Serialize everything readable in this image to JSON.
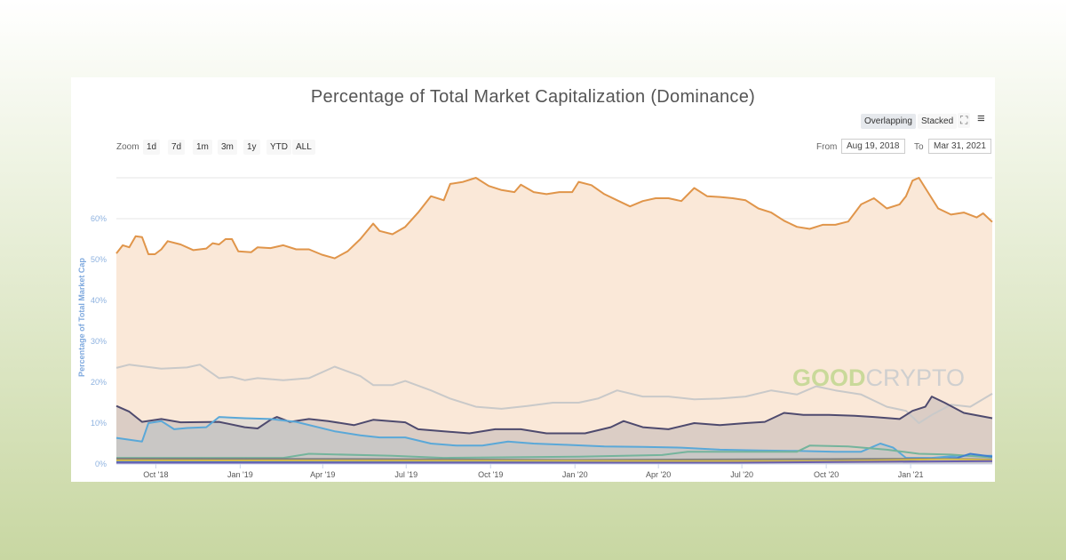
{
  "chart_data": {
    "type": "area",
    "title": "Percentage of Total Market Capitalization (Dominance)",
    "ylabel": "Percentage of Total Market Cap",
    "xlabel": "",
    "ylim": [
      0,
      70
    ],
    "yticks": [
      "0%",
      "10%",
      "20%",
      "30%",
      "40%",
      "50%",
      "60%"
    ],
    "xticks": [
      "Oct '18",
      "Jan '19",
      "Apr '19",
      "Jul '19",
      "Oct '19",
      "Jan '20",
      "Apr '20",
      "Jul '20",
      "Oct '20",
      "Jan '21"
    ],
    "xtick_dates": [
      "2018-10-01",
      "2019-01-01",
      "2019-04-01",
      "2019-07-01",
      "2019-10-01",
      "2020-01-01",
      "2020-04-01",
      "2020-07-01",
      "2020-10-01",
      "2021-01-01"
    ],
    "xrange": [
      "2018-08-19",
      "2021-03-31"
    ],
    "grid": true,
    "series": [
      {
        "color": "#e0954a",
        "fill": "#fae8d8",
        "points": [
          [
            "2018-08-19",
            51.5
          ],
          [
            "2018-08-26",
            53.5
          ],
          [
            "2018-09-02",
            53
          ],
          [
            "2018-09-09",
            55.7
          ],
          [
            "2018-09-16",
            55.5
          ],
          [
            "2018-09-23",
            51.3
          ],
          [
            "2018-09-30",
            51.3
          ],
          [
            "2018-10-07",
            52.5
          ],
          [
            "2018-10-14",
            54.5
          ],
          [
            "2018-10-28",
            53.7
          ],
          [
            "2018-11-11",
            52.3
          ],
          [
            "2018-11-25",
            52.7
          ],
          [
            "2018-12-02",
            54
          ],
          [
            "2018-12-09",
            53.7
          ],
          [
            "2018-12-16",
            55
          ],
          [
            "2018-12-23",
            55
          ],
          [
            "2018-12-30",
            52
          ],
          [
            "2019-01-13",
            51.8
          ],
          [
            "2019-01-20",
            53
          ],
          [
            "2019-02-03",
            52.8
          ],
          [
            "2019-02-17",
            53.5
          ],
          [
            "2019-03-03",
            52.5
          ],
          [
            "2019-03-17",
            52.5
          ],
          [
            "2019-03-31",
            51.2
          ],
          [
            "2019-04-14",
            50.3
          ],
          [
            "2019-04-28",
            52
          ],
          [
            "2019-05-12",
            55
          ],
          [
            "2019-05-26",
            58.8
          ],
          [
            "2019-06-02",
            57
          ],
          [
            "2019-06-16",
            56.2
          ],
          [
            "2019-06-30",
            58
          ],
          [
            "2019-07-14",
            61.5
          ],
          [
            "2019-07-28",
            65.5
          ],
          [
            "2019-08-11",
            64.5
          ],
          [
            "2019-08-18",
            68.5
          ],
          [
            "2019-09-01",
            69
          ],
          [
            "2019-09-15",
            70
          ],
          [
            "2019-09-29",
            68
          ],
          [
            "2019-10-13",
            67
          ],
          [
            "2019-10-27",
            66.5
          ],
          [
            "2019-11-03",
            68.3
          ],
          [
            "2019-11-17",
            66.5
          ],
          [
            "2019-12-01",
            66
          ],
          [
            "2019-12-15",
            66.5
          ],
          [
            "2019-12-29",
            66.5
          ],
          [
            "2020-01-05",
            69
          ],
          [
            "2020-01-19",
            68.2
          ],
          [
            "2020-02-02",
            66
          ],
          [
            "2020-02-16",
            64.5
          ],
          [
            "2020-03-01",
            63
          ],
          [
            "2020-03-15",
            64.3
          ],
          [
            "2020-03-29",
            65
          ],
          [
            "2020-04-12",
            65
          ],
          [
            "2020-04-26",
            64.3
          ],
          [
            "2020-05-10",
            67.5
          ],
          [
            "2020-05-24",
            65.5
          ],
          [
            "2020-06-07",
            65.3
          ],
          [
            "2020-06-21",
            65
          ],
          [
            "2020-07-05",
            64.5
          ],
          [
            "2020-07-19",
            62.5
          ],
          [
            "2020-08-02",
            61.5
          ],
          [
            "2020-08-16",
            59.5
          ],
          [
            "2020-08-30",
            58
          ],
          [
            "2020-09-13",
            57.5
          ],
          [
            "2020-09-27",
            58.5
          ],
          [
            "2020-10-11",
            58.5
          ],
          [
            "2020-10-25",
            59.3
          ],
          [
            "2020-11-08",
            63.5
          ],
          [
            "2020-11-22",
            65
          ],
          [
            "2020-12-06",
            62.5
          ],
          [
            "2020-12-20",
            63.5
          ],
          [
            "2020-12-27",
            65.5
          ],
          [
            "2021-01-03",
            69.3
          ],
          [
            "2021-01-10",
            70
          ],
          [
            "2021-01-17",
            67.5
          ],
          [
            "2021-01-31",
            62.5
          ],
          [
            "2021-02-14",
            61
          ],
          [
            "2021-02-28",
            61.5
          ],
          [
            "2021-03-14",
            60.3
          ],
          [
            "2021-03-21",
            61.3
          ],
          [
            "2021-03-31",
            59.2
          ]
        ]
      },
      {
        "color": "#c9c9c9",
        "fill": "none",
        "points": [
          [
            "2018-08-19",
            23.5
          ],
          [
            "2018-09-02",
            24.3
          ],
          [
            "2018-10-07",
            23.3
          ],
          [
            "2018-11-04",
            23.6
          ],
          [
            "2018-11-18",
            24.3
          ],
          [
            "2018-12-09",
            21
          ],
          [
            "2018-12-23",
            21.3
          ],
          [
            "2019-01-06",
            20.5
          ],
          [
            "2019-01-20",
            21
          ],
          [
            "2019-02-17",
            20.5
          ],
          [
            "2019-03-17",
            21
          ],
          [
            "2019-04-14",
            23.8
          ],
          [
            "2019-05-12",
            21.5
          ],
          [
            "2019-05-26",
            19.3
          ],
          [
            "2019-06-16",
            19.3
          ],
          [
            "2019-06-30",
            20.3
          ],
          [
            "2019-07-28",
            18
          ],
          [
            "2019-08-18",
            16
          ],
          [
            "2019-09-15",
            14
          ],
          [
            "2019-10-13",
            13.5
          ],
          [
            "2019-11-10",
            14.2
          ],
          [
            "2019-12-08",
            15
          ],
          [
            "2020-01-05",
            15
          ],
          [
            "2020-01-26",
            16
          ],
          [
            "2020-02-16",
            18
          ],
          [
            "2020-03-15",
            16.5
          ],
          [
            "2020-04-12",
            16.5
          ],
          [
            "2020-05-10",
            15.8
          ],
          [
            "2020-06-07",
            16
          ],
          [
            "2020-07-05",
            16.5
          ],
          [
            "2020-08-02",
            18
          ],
          [
            "2020-08-30",
            17
          ],
          [
            "2020-09-20",
            19
          ],
          [
            "2020-10-11",
            18
          ],
          [
            "2020-11-08",
            17
          ],
          [
            "2020-12-06",
            14
          ],
          [
            "2020-12-27",
            13
          ],
          [
            "2021-01-10",
            10
          ],
          [
            "2021-01-24",
            12
          ],
          [
            "2021-02-14",
            14.5
          ],
          [
            "2021-03-07",
            14
          ],
          [
            "2021-03-31",
            17.2
          ]
        ]
      },
      {
        "color": "#4e4a6e",
        "fill": "rgba(110,110,130,0.22)",
        "points": [
          [
            "2018-08-19",
            14.2
          ],
          [
            "2018-09-02",
            12.8
          ],
          [
            "2018-09-16",
            10.3
          ],
          [
            "2018-10-07",
            11
          ],
          [
            "2018-10-28",
            10.2
          ],
          [
            "2018-12-09",
            10.3
          ],
          [
            "2019-01-06",
            9
          ],
          [
            "2019-01-20",
            8.7
          ],
          [
            "2019-02-03",
            10.8
          ],
          [
            "2019-02-10",
            11.5
          ],
          [
            "2019-02-24",
            10.3
          ],
          [
            "2019-03-17",
            11
          ],
          [
            "2019-04-07",
            10.5
          ],
          [
            "2019-05-05",
            9.5
          ],
          [
            "2019-05-26",
            10.8
          ],
          [
            "2019-06-30",
            10.2
          ],
          [
            "2019-07-14",
            8.5
          ],
          [
            "2019-08-11",
            8
          ],
          [
            "2019-09-08",
            7.5
          ],
          [
            "2019-10-06",
            8.5
          ],
          [
            "2019-11-03",
            8.5
          ],
          [
            "2019-12-01",
            7.5
          ],
          [
            "2020-01-12",
            7.5
          ],
          [
            "2020-02-09",
            9
          ],
          [
            "2020-02-23",
            10.5
          ],
          [
            "2020-03-15",
            9
          ],
          [
            "2020-04-12",
            8.5
          ],
          [
            "2020-05-10",
            10
          ],
          [
            "2020-06-07",
            9.5
          ],
          [
            "2020-07-05",
            10
          ],
          [
            "2020-07-26",
            10.3
          ],
          [
            "2020-08-16",
            12.5
          ],
          [
            "2020-09-06",
            12
          ],
          [
            "2020-10-04",
            12
          ],
          [
            "2020-11-01",
            11.8
          ],
          [
            "2020-11-22",
            11.5
          ],
          [
            "2020-12-20",
            11
          ],
          [
            "2021-01-03",
            13
          ],
          [
            "2021-01-17",
            14
          ],
          [
            "2021-01-24",
            16.5
          ],
          [
            "2021-02-07",
            15
          ],
          [
            "2021-02-28",
            12.5
          ],
          [
            "2021-03-31",
            11.2
          ]
        ]
      },
      {
        "color": "#5aa8d8",
        "fill": "rgba(120,170,200,0.18)",
        "points": [
          [
            "2018-08-19",
            6.4
          ],
          [
            "2018-09-16",
            5.5
          ],
          [
            "2018-09-23",
            10
          ],
          [
            "2018-10-07",
            10.5
          ],
          [
            "2018-10-21",
            8.5
          ],
          [
            "2018-11-04",
            8.8
          ],
          [
            "2018-11-25",
            9
          ],
          [
            "2018-12-09",
            11.5
          ],
          [
            "2019-01-06",
            11.2
          ],
          [
            "2019-02-03",
            11
          ],
          [
            "2019-03-03",
            10.3
          ],
          [
            "2019-04-14",
            8
          ],
          [
            "2019-05-12",
            7
          ],
          [
            "2019-06-02",
            6.5
          ],
          [
            "2019-06-30",
            6.5
          ],
          [
            "2019-07-28",
            5
          ],
          [
            "2019-08-25",
            4.5
          ],
          [
            "2019-09-22",
            4.5
          ],
          [
            "2019-10-20",
            5.5
          ],
          [
            "2019-11-17",
            5
          ],
          [
            "2019-12-22",
            4.7
          ],
          [
            "2020-02-02",
            4.3
          ],
          [
            "2020-03-15",
            4.2
          ],
          [
            "2020-04-26",
            4
          ],
          [
            "2020-06-07",
            3.5
          ],
          [
            "2020-07-19",
            3.3
          ],
          [
            "2020-08-30",
            3.2
          ],
          [
            "2020-10-11",
            3
          ],
          [
            "2020-11-08",
            3
          ],
          [
            "2020-11-29",
            5
          ],
          [
            "2020-12-13",
            4
          ],
          [
            "2020-12-27",
            1.5
          ],
          [
            "2021-01-24",
            1.5
          ],
          [
            "2021-02-21",
            2
          ],
          [
            "2021-03-31",
            2
          ]
        ]
      },
      {
        "color": "#74b49c",
        "fill": "none",
        "points": [
          [
            "2018-08-19",
            1.5
          ],
          [
            "2019-02-17",
            1.5
          ],
          [
            "2019-03-17",
            2.5
          ],
          [
            "2019-06-16",
            2
          ],
          [
            "2019-08-11",
            1.5
          ],
          [
            "2020-01-05",
            1.8
          ],
          [
            "2020-04-05",
            2.2
          ],
          [
            "2020-05-03",
            3
          ],
          [
            "2020-08-30",
            3
          ],
          [
            "2020-09-13",
            4.5
          ],
          [
            "2020-10-25",
            4.3
          ],
          [
            "2020-12-06",
            3.5
          ],
          [
            "2021-01-10",
            2.5
          ],
          [
            "2021-02-14",
            2.3
          ],
          [
            "2021-03-31",
            1.6
          ]
        ]
      },
      {
        "color": "#7f7f7f",
        "fill": "none",
        "points": [
          [
            "2018-08-19",
            1.3
          ],
          [
            "2019-06-02",
            1.2
          ],
          [
            "2020-01-05",
            1
          ],
          [
            "2020-10-04",
            1.2
          ],
          [
            "2021-01-31",
            1.3
          ],
          [
            "2021-03-31",
            1.1
          ]
        ]
      },
      {
        "color": "#3f7fd0",
        "fill": "none",
        "points": [
          [
            "2018-08-19",
            0.6
          ],
          [
            "2019-06-02",
            0.5
          ],
          [
            "2020-09-06",
            0.6
          ],
          [
            "2020-12-13",
            0.8
          ],
          [
            "2021-02-21",
            1.5
          ],
          [
            "2021-03-07",
            2.5
          ],
          [
            "2021-03-31",
            1.8
          ]
        ]
      },
      {
        "color": "#d4b84a",
        "fill": "none",
        "points": [
          [
            "2018-08-19",
            0.9
          ],
          [
            "2019-10-06",
            0.8
          ],
          [
            "2020-10-04",
            0.7
          ],
          [
            "2021-02-07",
            1.2
          ],
          [
            "2021-03-31",
            1
          ]
        ]
      },
      {
        "color": "#6a5fb0",
        "fill": "none",
        "points": [
          [
            "2018-08-19",
            0.3
          ],
          [
            "2020-06-07",
            0.3
          ],
          [
            "2021-01-10",
            0.6
          ],
          [
            "2021-03-31",
            0.7
          ]
        ]
      }
    ]
  },
  "toolbar": {
    "overlapping": "Overlapping",
    "stacked": "Stacked",
    "zoom_label": "Zoom",
    "zoom_buttons": [
      "1d",
      "7d",
      "1m",
      "3m",
      "1y",
      "YTD",
      "ALL"
    ],
    "from_label": "From",
    "from_value": "Aug 19, 2018",
    "to_label": "To",
    "to_value": "Mar 31, 2021"
  },
  "watermark": {
    "part1": "GOOD",
    "part2": "CRYPTO",
    "color1": "#c9d99a",
    "color2": "#cfcfcf"
  }
}
